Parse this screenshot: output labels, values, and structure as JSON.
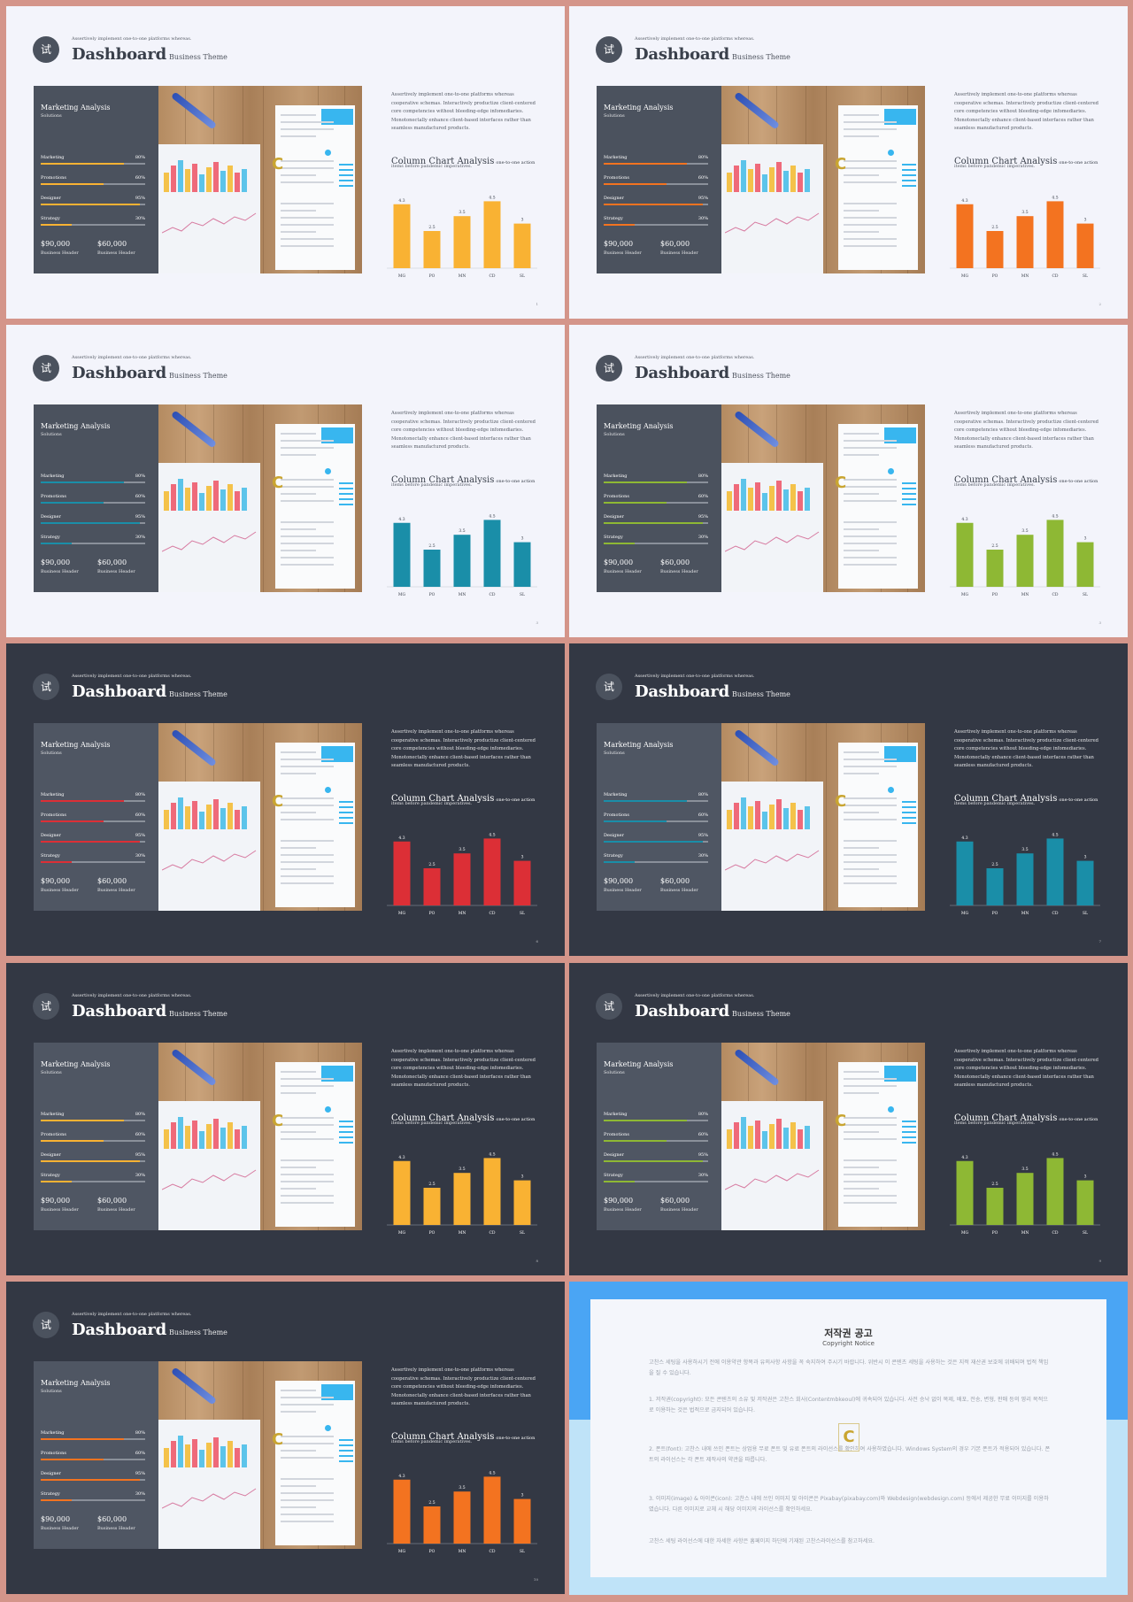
{
  "slides": [
    {
      "theme": "light",
      "accent": "#f9b233",
      "page": "1"
    },
    {
      "theme": "light",
      "accent": "#f37320",
      "page": "2"
    },
    {
      "theme": "light",
      "accent": "#1a8ea8",
      "page": "3"
    },
    {
      "theme": "light",
      "accent": "#8eb834",
      "page": "3"
    },
    {
      "theme": "dark",
      "accent": "#dc2f36",
      "page": "6"
    },
    {
      "theme": "dark",
      "accent": "#1a8ea8",
      "page": "7"
    },
    {
      "theme": "dark",
      "accent": "#f9b233",
      "page": "8"
    },
    {
      "theme": "dark",
      "accent": "#8eb834",
      "page": "9"
    },
    {
      "theme": "dark",
      "accent": "#f37320",
      "page": "10"
    }
  ],
  "common": {
    "logo_glyph": "试",
    "tagline": "Assertively implement one-to-one platforms whereas.",
    "title": "Dashboard",
    "subtitle": "Business Theme",
    "panel_title": "Marketing Analysis",
    "panel_subtitle": "Solutions",
    "metrics": [
      {
        "label": "Marketing",
        "value": "80%",
        "fraction": 0.8
      },
      {
        "label": "Promotions",
        "value": "60%",
        "fraction": 0.6
      },
      {
        "label": "Designer",
        "value": "95%",
        "fraction": 0.95
      },
      {
        "label": "Strategy",
        "value": "30%",
        "fraction": 0.3
      }
    ],
    "money": [
      {
        "amount": "$90,000",
        "label": "Business Header"
      },
      {
        "amount": "$60,000",
        "label": "Business Header"
      }
    ],
    "description": "Assertively implement one-to-one platforms whereas cooperative schemas. Interactively productize client-centered core competencies without bleeding-edge infomediaries. Monotonectally enhance client-based interfaces rather than seamless manufactured products.",
    "chart_title": "Column Chart Analysis",
    "chart_title_suffix": "one-to-one action",
    "chart_subtitle": "items before pandemic imperatives."
  },
  "chart_data": {
    "type": "bar",
    "categories": [
      "MG",
      "PO",
      "MN",
      "CD",
      "SL"
    ],
    "values": [
      4.3,
      2.5,
      3.5,
      4.5,
      3
    ],
    "value_labels": [
      "4.3",
      "2.5",
      "3.5",
      "4.5",
      "3"
    ],
    "ylim": [
      0,
      5
    ]
  },
  "copyright": {
    "title": "저작권 공고",
    "subtitle": "Copyright Notice",
    "intro": "고찬스 세팅을 사용하시기 전에 이용약관 항목과 유의사항 사항을 꼭 숙지하여 주시기 바랍니다. 위반시 이 콘텐츠 세팅을 사용하는 것은 지적 재산권 보호에 위배되며 법적 책임을 질 수 있습니다.",
    "item1": "1. 저작권(copyright): 모든 콘텐츠의 소유 및 저작권은 고찬스 회사(Contentmbkeoul)에 귀속되어 있습니다. 사전 승낙 없이 복제, 배포, 전송, 변형, 판매 등의 영리 목적으로 이용하는 것은 법적으로 금지되어 있습니다.",
    "item2": "2. 폰트(font): 고찬스 내에 쓰인 폰트는 상업용 무료 폰트 및 유료 폰트의 라이선스를 확인하여 사용하였습니다. Windows System의 경우 기본 폰트가 적용되어 있습니다. 폰트의 라이선스는 각 폰트 제작사의 약관을 따릅니다.",
    "item3": "3. 이미지(image) & 아이콘(icon): 고찬스 내에 쓰인 이미지 및 아이콘은 Pixabay(pixabay.com)와 Webdesign(webdesign.com) 등에서 제공한 무료 이미지를 이용하였습니다. 다른 이미지로 교체 시 해당 이미지의 라이선스를 확인하세요.",
    "outro": "고찬스 세팅 라이선스에 대한 자세한 사항은 홈페이지 하단에 기재된 고찬스라이선스를 참고하세요."
  }
}
